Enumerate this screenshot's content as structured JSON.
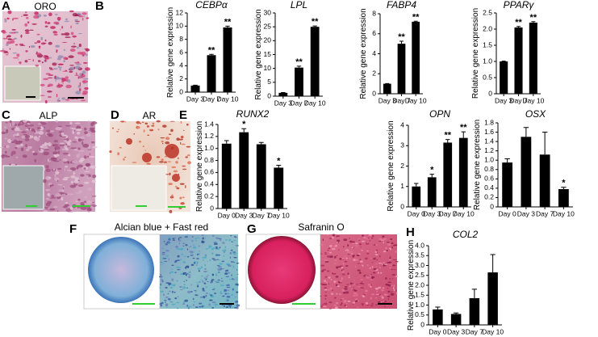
{
  "panels": [
    {
      "letter": "A",
      "caption": "ORO"
    },
    {
      "letter": "B"
    },
    {
      "letter": "C",
      "caption": "ALP"
    },
    {
      "letter": "D",
      "caption": "AR"
    },
    {
      "letter": "E"
    },
    {
      "letter": "F",
      "caption": "Alcian blue + Fast red"
    },
    {
      "letter": "G",
      "caption": "Safranin O"
    },
    {
      "letter": "H"
    }
  ],
  "chart_data": [
    {
      "type": "bar",
      "title": "CEBPα",
      "ylabel": "Relative gene expression",
      "categories": [
        "Day 3",
        "Day 7",
        "Day 10"
      ],
      "values": [
        1.0,
        5.6,
        9.8
      ],
      "errors": [
        0.05,
        0.12,
        0.2
      ],
      "annotations": [
        null,
        "**",
        "**"
      ],
      "color": "#000000",
      "ylim": [
        0,
        12
      ],
      "yticks": [
        0,
        2,
        4,
        6,
        8,
        10,
        12
      ]
    },
    {
      "type": "bar",
      "title": "LPL",
      "ylabel": "Relative gene expression",
      "categories": [
        "Day 3",
        "Day 7",
        "Day 10"
      ],
      "values": [
        1.2,
        10.3,
        25.0
      ],
      "errors": [
        0.1,
        0.5,
        0.3
      ],
      "annotations": [
        null,
        "**",
        "**"
      ],
      "color": "#000000",
      "ylim": [
        0,
        30
      ],
      "yticks": [
        0,
        5,
        10,
        15,
        20,
        25,
        30
      ]
    },
    {
      "type": "bar",
      "title": "FABP4",
      "ylabel": "Relative gene expression",
      "categories": [
        "Day 3",
        "Day 7",
        "Day 10"
      ],
      "values": [
        1.0,
        5.0,
        7.2
      ],
      "errors": [
        0.02,
        0.25,
        0.05
      ],
      "annotations": [
        null,
        "**",
        "**"
      ],
      "color": "#000000",
      "ylim": [
        0,
        8
      ],
      "yticks": [
        0,
        2,
        4,
        6,
        8
      ]
    },
    {
      "type": "bar",
      "title": "PPARγ",
      "ylabel": "Relative gene expression",
      "categories": [
        "Day 3",
        "Day 7",
        "Day 10"
      ],
      "values": [
        1.0,
        2.05,
        2.2
      ],
      "errors": [
        0.01,
        0.03,
        0.03
      ],
      "annotations": [
        null,
        "**",
        "**"
      ],
      "color": "#000000",
      "ylim": [
        0,
        2.5
      ],
      "yticks": [
        0,
        0.5,
        {
          "value": 1,
          "label": "1.0"
        },
        1.5,
        {
          "value": 2,
          "label": "2.0"
        },
        2.5
      ]
    },
    {
      "type": "bar",
      "title": "RUNX2",
      "ylabel": "Relative gene expression",
      "categories": [
        "Day 0",
        "Day 3",
        "Day 7",
        "Day 10"
      ],
      "values": [
        1.08,
        1.27,
        1.07,
        0.68
      ],
      "errors": [
        0.05,
        0.06,
        0.03,
        0.04
      ],
      "annotations": [
        null,
        "*",
        null,
        "*"
      ],
      "color": "#000000",
      "ylim": [
        0,
        1.4
      ],
      "yticks": [
        0,
        0.2,
        0.4,
        0.6,
        0.8,
        {
          "value": 1,
          "label": "1.0"
        },
        1.2,
        1.4
      ]
    },
    {
      "type": "bar",
      "title": "OPN",
      "ylabel": "Relative gene expression",
      "categories": [
        "Day 0",
        "Day 3",
        "Day 7",
        "Day 10"
      ],
      "values": [
        1.0,
        1.45,
        3.15,
        3.38
      ],
      "errors": [
        0.15,
        0.15,
        0.15,
        0.3
      ],
      "annotations": [
        null,
        "*",
        "**",
        "**"
      ],
      "color": "#000000",
      "ylim": [
        0,
        4
      ],
      "yticks": [
        0,
        1,
        2,
        3,
        4
      ]
    },
    {
      "type": "bar",
      "title": "OSX",
      "ylabel": "Relative gene expression",
      "categories": [
        "Day 0",
        "Day 3",
        "Day 7",
        "Day 10"
      ],
      "values": [
        0.95,
        1.5,
        1.12,
        0.38
      ],
      "errors": [
        0.08,
        0.2,
        0.48,
        0.04
      ],
      "annotations": [
        null,
        null,
        null,
        "*"
      ],
      "color": "#000000",
      "ylim": [
        0,
        1.8
      ],
      "yticks": [
        0,
        0.2,
        0.4,
        0.6,
        0.8,
        {
          "value": 1,
          "label": "1.0"
        },
        1.2,
        1.4,
        1.6,
        1.8
      ]
    },
    {
      "type": "bar",
      "title": "COL2",
      "ylabel": "Relative gene expression",
      "categories": [
        "Day 0",
        "Day 3",
        "Day 7",
        "Day 10"
      ],
      "values": [
        0.78,
        0.55,
        1.35,
        2.65
      ],
      "errors": [
        0.12,
        0.05,
        0.45,
        0.9
      ],
      "annotations": [
        null,
        null,
        null,
        null
      ],
      "color": "#000000",
      "ylim": [
        0,
        4
      ],
      "yticks": [
        0,
        0.5,
        {
          "value": 1,
          "label": "1.0"
        },
        1.5,
        {
          "value": 2,
          "label": "2.0"
        },
        2.5,
        {
          "value": 3,
          "label": "3.0"
        },
        3.5,
        {
          "value": 4,
          "label": "4.0"
        }
      ]
    }
  ]
}
